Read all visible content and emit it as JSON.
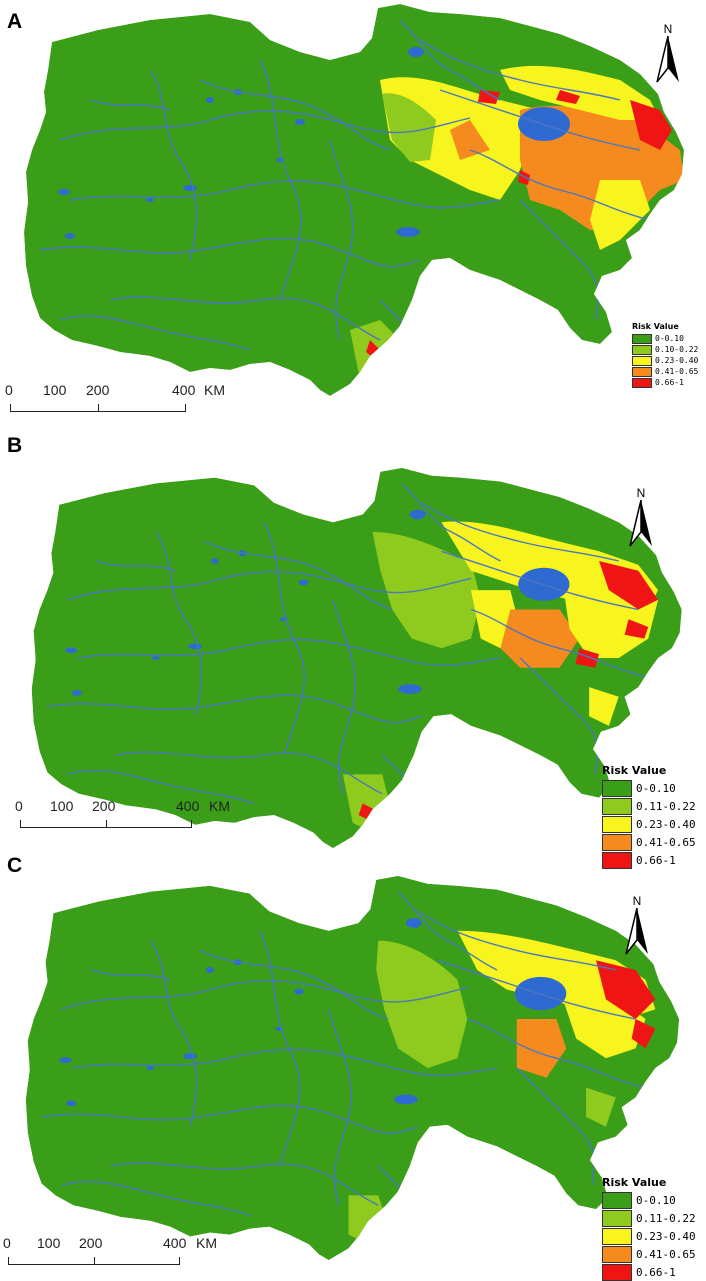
{
  "legend_title": "Risk Value",
  "unit": "KM",
  "scale_ticks": [
    "0",
    "100",
    "200",
    "400"
  ],
  "north_label": "N",
  "colors": {
    "class_0": "#3a9e18",
    "class_1": "#8fca1e",
    "class_2": "#f7f51d",
    "class_3": "#f58a1f",
    "class_4": "#f01515",
    "water": "#2f6ad1",
    "river": "#4a76c2"
  },
  "panels": [
    {
      "label": "A",
      "legend": [
        "0-0.10",
        "0.10-0.22",
        "0.23-0.40",
        "0.41-0.65",
        "0.66-1"
      ]
    },
    {
      "label": "B",
      "legend": [
        "0-0.10",
        "0.11-0.22",
        "0.23-0.40",
        "0.41-0.65",
        "0.66-1"
      ]
    },
    {
      "label": "C",
      "legend": [
        "0-0.10",
        "0.11-0.22",
        "0.23-0.40",
        "0.41-0.65",
        "0.66-1"
      ]
    }
  ]
}
